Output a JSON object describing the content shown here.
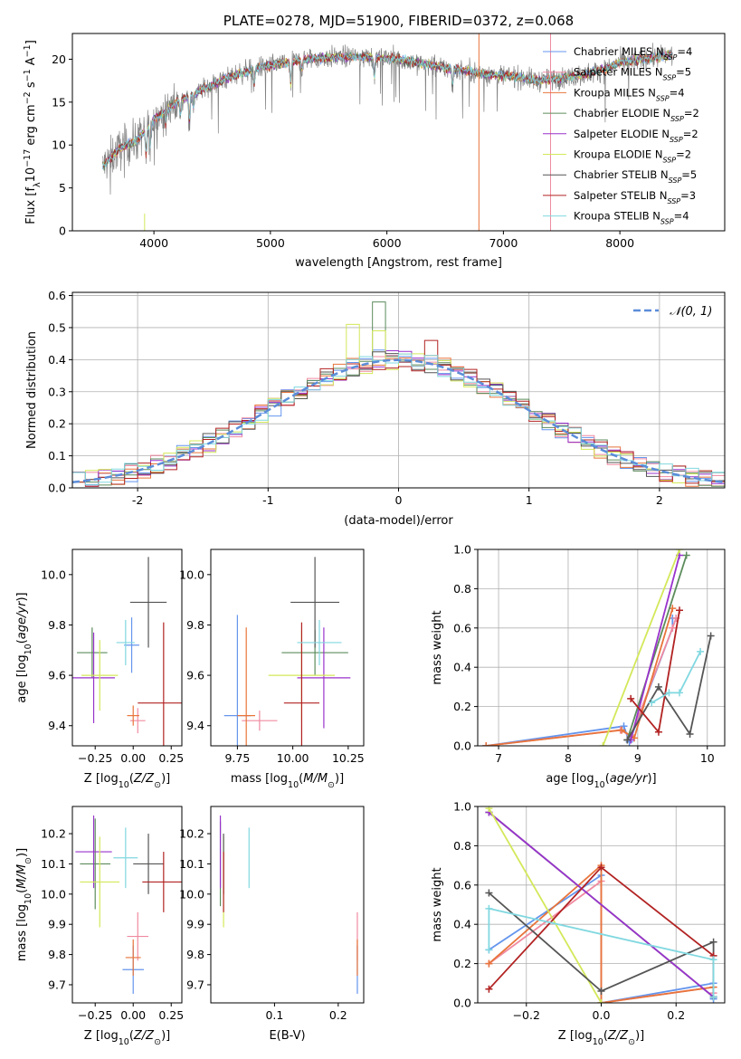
{
  "figure": {
    "title": "PLATE=0278, MJD=51900, FIBERID=0372, z=0.068"
  },
  "colors": {
    "Chabrier MILES": "#6495ed",
    "Salpeter MILES": "#f08aa0",
    "Kroupa MILES": "#e8743b",
    "Chabrier ELODIE": "#5c8c5c",
    "Salpeter ELODIE": "#9932cc",
    "Kroupa ELODIE": "#d4e85a",
    "Chabrier STELIB": "#555555",
    "Salpeter STELIB": "#b22222",
    "Kroupa STELIB": "#80d8e0",
    "data": "#808080",
    "normal": "#5b8dd9"
  },
  "chart_data": [
    {
      "id": "spectrum",
      "type": "line",
      "title": "PLATE=0278, MJD=51900, FIBERID=0372, z=0.068",
      "xlabel": "wavelength [Angstrom, rest frame]",
      "ylabel": "Flux [f",
      "ylabel_parts": [
        "Flux [f",
        "λ",
        "10",
        "−17",
        " erg cm",
        "−2",
        " s",
        "−1",
        " A",
        "−1",
        "]"
      ],
      "xlim": [
        3300,
        8900
      ],
      "ylim": [
        0,
        23
      ],
      "xticks": [
        4000,
        5000,
        6000,
        7000,
        8000
      ],
      "yticks": [
        0,
        5,
        10,
        15,
        20
      ],
      "legend_position": "right",
      "legend": [
        {
          "name": "Chabrier MILES",
          "nssp": "4"
        },
        {
          "name": "Salpeter MILES",
          "nssp": "5"
        },
        {
          "name": "Kroupa MILES",
          "nssp": "4"
        },
        {
          "name": "Chabrier ELODIE",
          "nssp": "2"
        },
        {
          "name": "Salpeter ELODIE",
          "nssp": "2"
        },
        {
          "name": "Kroupa ELODIE",
          "nssp": "2"
        },
        {
          "name": "Chabrier STELIB",
          "nssp": "5"
        },
        {
          "name": "Salpeter STELIB",
          "nssp": "3"
        },
        {
          "name": "Kroupa STELIB",
          "nssp": "4"
        }
      ],
      "nssp_label": "N",
      "nssp_sub": "SSP",
      "continuum": [
        [
          3560,
          7.5
        ],
        [
          3700,
          9.5
        ],
        [
          3850,
          10.5
        ],
        [
          3950,
          12
        ],
        [
          4000,
          13
        ],
        [
          4100,
          14
        ],
        [
          4200,
          15
        ],
        [
          4300,
          15.8
        ],
        [
          4500,
          17
        ],
        [
          4700,
          18.2
        ],
        [
          4900,
          19
        ],
        [
          5100,
          19.5
        ],
        [
          5300,
          20
        ],
        [
          5500,
          20.2
        ],
        [
          5700,
          20.3
        ],
        [
          5900,
          20.2
        ],
        [
          6100,
          20
        ],
        [
          6300,
          19.5
        ],
        [
          6500,
          19
        ],
        [
          6700,
          18.6
        ],
        [
          6900,
          18.2
        ],
        [
          7100,
          18
        ],
        [
          7300,
          17.5
        ],
        [
          7500,
          17.8
        ],
        [
          7700,
          18.2
        ],
        [
          7900,
          19
        ],
        [
          8000,
          19.6
        ],
        [
          8200,
          20
        ],
        [
          8450,
          20.5
        ]
      ],
      "absorption_features": [
        [
          3933,
          3.5
        ],
        [
          3968,
          3
        ],
        [
          4101,
          2
        ],
        [
          4227,
          2
        ],
        [
          4304,
          3.5
        ],
        [
          4340,
          2
        ],
        [
          4861,
          2
        ],
        [
          5175,
          3
        ],
        [
          5270,
          1.5
        ],
        [
          5892,
          2.5
        ],
        [
          6563,
          2
        ]
      ],
      "bad_pixels": [
        3920,
        6790,
        7405
      ]
    },
    {
      "id": "residuals",
      "type": "line",
      "xlabel": "(data-model)/error",
      "ylabel": "Normed distribution",
      "xlim": [
        -2.5,
        2.5
      ],
      "ylim": [
        0,
        0.61
      ],
      "xticks": [
        -2,
        -1,
        0,
        1,
        2
      ],
      "yticks": [
        0.0,
        0.1,
        0.2,
        0.3,
        0.4,
        0.5,
        0.6
      ],
      "grid": true,
      "legend_position": "top-right",
      "legend": [
        "𝒩(0, 1)"
      ],
      "bin_width": 0.1,
      "histogram_envelope": "gaussian",
      "series_peaks": {
        "Chabrier MILES": [
          [
            -0.15,
            0.43
          ],
          [
            0.05,
            0.41
          ]
        ],
        "Chabrier ELODIE": [
          [
            -0.15,
            0.58
          ]
        ],
        "Kroupa ELODIE": [
          [
            -0.35,
            0.51
          ],
          [
            -0.15,
            0.49
          ]
        ],
        "Salpeter STELIB": [
          [
            0.25,
            0.46
          ]
        ]
      }
    },
    {
      "id": "age-vs-Z",
      "type": "scatter",
      "xlabel": "Z [log",
      "ylabel": "age  [log",
      "xlim": [
        -0.4,
        0.32
      ],
      "ylim": [
        9.32,
        10.1
      ],
      "xticks": [
        -0.25,
        0.0,
        0.25
      ],
      "xticklabels": [
        "−0.25",
        "0.00",
        "0.25"
      ],
      "yticks": [
        9.4,
        9.6,
        9.8,
        10.0
      ],
      "points": [
        {
          "series": "Chabrier MILES",
          "x": -0.01,
          "xerr": 0.05,
          "y": 9.72,
          "yerr": 0.11
        },
        {
          "series": "Salpeter MILES",
          "x": 0.03,
          "xerr": 0.05,
          "y": 9.42,
          "yerr": 0.05
        },
        {
          "series": "Kroupa MILES",
          "x": 0.0,
          "xerr": 0.04,
          "y": 9.44,
          "yerr": 0.04
        },
        {
          "series": "Chabrier ELODIE",
          "x": -0.27,
          "xerr": 0.1,
          "y": 9.69,
          "yerr": 0.1
        },
        {
          "series": "Salpeter ELODIE",
          "x": -0.26,
          "xerr": 0.14,
          "y": 9.59,
          "yerr": 0.18
        },
        {
          "series": "Kroupa ELODIE",
          "x": -0.22,
          "xerr": 0.12,
          "y": 9.6,
          "yerr": 0.14
        },
        {
          "series": "Chabrier STELIB",
          "x": 0.1,
          "xerr": 0.12,
          "y": 9.89,
          "yerr": 0.18
        },
        {
          "series": "Salpeter STELIB",
          "x": 0.2,
          "xerr": 0.17,
          "y": 9.49,
          "yerr": 0.32
        },
        {
          "series": "Kroupa STELIB",
          "x": -0.05,
          "xerr": 0.06,
          "y": 9.73,
          "yerr": 0.09
        }
      ]
    },
    {
      "id": "age-vs-mass",
      "type": "scatter",
      "xlabel": "mass [log",
      "xlim": [
        9.63,
        10.32
      ],
      "ylim": [
        9.32,
        10.1
      ],
      "xticks": [
        9.75,
        10.0,
        10.25
      ],
      "xticklabels": [
        "9.75",
        "10.00",
        "10.25"
      ],
      "yticks": [
        9.4,
        9.6,
        9.8,
        10.0
      ],
      "points": [
        {
          "series": "Chabrier MILES",
          "x": 9.75,
          "xerr": 0.06,
          "y": 9.44,
          "yerr": 0.4
        },
        {
          "series": "Salpeter MILES",
          "x": 9.85,
          "xerr": 0.08,
          "y": 9.42,
          "yerr": 0.04
        },
        {
          "series": "Kroupa MILES",
          "x": 9.79,
          "xerr": 0.04,
          "y": 9.44,
          "yerr": 0.35
        },
        {
          "series": "Chabrier ELODIE",
          "x": 10.1,
          "xerr": 0.15,
          "y": 9.69,
          "yerr": 0.09
        },
        {
          "series": "Salpeter ELODIE",
          "x": 10.14,
          "xerr": 0.12,
          "y": 9.59,
          "yerr": 0.2
        },
        {
          "series": "Kroupa ELODIE",
          "x": 10.04,
          "xerr": 0.15,
          "y": 9.6,
          "yerr": 0.18
        },
        {
          "series": "Chabrier STELIB",
          "x": 10.1,
          "xerr": 0.11,
          "y": 9.89,
          "yerr": 0.18
        },
        {
          "series": "Salpeter STELIB",
          "x": 10.04,
          "xerr": 0.08,
          "y": 9.49,
          "yerr": 0.32
        },
        {
          "series": "Kroupa STELIB",
          "x": 10.12,
          "xerr": 0.1,
          "y": 9.73,
          "yerr": 0.09
        }
      ]
    },
    {
      "id": "mass-weight-vs-age",
      "type": "line",
      "xlabel": "age  [log",
      "ylabel": "mass weight",
      "xlim": [
        6.7,
        10.25
      ],
      "ylim": [
        0.0,
        1.0
      ],
      "xticks": [
        7,
        8,
        9,
        10
      ],
      "yticks": [
        0.0,
        0.2,
        0.4,
        0.6,
        0.8,
        1.0
      ],
      "grid": true,
      "series": [
        {
          "name": "Chabrier MILES",
          "x": [
            6.82,
            8.8,
            8.88,
            9.5,
            9.5
          ],
          "y": [
            0.0,
            0.1,
            0.02,
            0.6,
            0.65
          ]
        },
        {
          "name": "Salpeter MILES",
          "x": [
            6.82,
            8.75,
            8.9,
            9.5,
            9.55
          ],
          "y": [
            0.0,
            0.08,
            0.05,
            0.6,
            0.65
          ]
        },
        {
          "name": "Kroupa MILES",
          "x": [
            6.82,
            8.77,
            8.95,
            9.5
          ],
          "y": [
            0.0,
            0.08,
            0.04,
            0.7
          ]
        },
        {
          "name": "Chabrier ELODIE",
          "x": [
            8.85,
            9.7
          ],
          "y": [
            0.03,
            0.97
          ]
        },
        {
          "name": "Salpeter ELODIE",
          "x": [
            8.9,
            9.6
          ],
          "y": [
            0.03,
            0.97
          ]
        },
        {
          "name": "Kroupa ELODIE",
          "x": [
            8.5,
            9.6
          ],
          "y": [
            0.0,
            1.0
          ]
        },
        {
          "name": "Chabrier STELIB",
          "x": [
            8.85,
            9.3,
            9.75,
            10.05
          ],
          "y": [
            0.03,
            0.3,
            0.06,
            0.56
          ]
        },
        {
          "name": "Salpeter STELIB",
          "x": [
            8.9,
            9.3,
            9.6
          ],
          "y": [
            0.24,
            0.07,
            0.69
          ]
        },
        {
          "name": "Kroupa STELIB",
          "x": [
            9.2,
            9.45,
            9.6,
            9.9
          ],
          "y": [
            0.22,
            0.27,
            0.27,
            0.48
          ]
        }
      ]
    },
    {
      "id": "mass-vs-Z",
      "type": "scatter",
      "xlabel": "Z [log",
      "ylabel": "mass [log",
      "xlim": [
        -0.4,
        0.32
      ],
      "ylim": [
        9.64,
        10.29
      ],
      "xticks": [
        -0.25,
        0.0,
        0.25
      ],
      "xticklabels": [
        "−0.25",
        "0.00",
        "0.25"
      ],
      "yticks": [
        9.7,
        9.8,
        9.9,
        10.0,
        10.1,
        10.2
      ],
      "points": [
        {
          "series": "Chabrier MILES",
          "x": 0.0,
          "xerr": 0.07,
          "y": 9.75,
          "yerr": 0.08
        },
        {
          "series": "Salpeter MILES",
          "x": 0.03,
          "xerr": 0.07,
          "y": 9.86,
          "yerr": 0.08
        },
        {
          "series": "Kroupa MILES",
          "x": 0.0,
          "xerr": 0.05,
          "y": 9.79,
          "yerr": 0.06
        },
        {
          "series": "Chabrier ELODIE",
          "x": -0.25,
          "xerr": 0.1,
          "y": 10.1,
          "yerr": 0.15
        },
        {
          "series": "Salpeter ELODIE",
          "x": -0.26,
          "xerr": 0.12,
          "y": 10.14,
          "yerr": 0.12
        },
        {
          "series": "Kroupa ELODIE",
          "x": -0.22,
          "xerr": 0.13,
          "y": 10.04,
          "yerr": 0.15
        },
        {
          "series": "Chabrier STELIB",
          "x": 0.1,
          "xerr": 0.1,
          "y": 10.1,
          "yerr": 0.1
        },
        {
          "series": "Salpeter STELIB",
          "x": 0.2,
          "xerr": 0.14,
          "y": 10.04,
          "yerr": 0.1
        },
        {
          "series": "Kroupa STELIB",
          "x": -0.05,
          "xerr": 0.08,
          "y": 10.12,
          "yerr": 0.1
        }
      ]
    },
    {
      "id": "mass-vs-EBV",
      "type": "scatter",
      "xlabel": "E(B-V)",
      "xlim": [
        0.0,
        0.24
      ],
      "ylim": [
        9.64,
        10.29
      ],
      "xticks": [
        0.1,
        0.2
      ],
      "xticklabels": [
        "0.1",
        "0.2"
      ],
      "yticks": [
        9.7,
        9.8,
        9.9,
        10.0,
        10.1,
        10.2
      ],
      "points": [
        {
          "series": "Chabrier MILES",
          "x": 0.23,
          "y": 9.75,
          "yerr": 0.08
        },
        {
          "series": "Salpeter MILES",
          "x": 0.23,
          "y": 9.86,
          "yerr": 0.08
        },
        {
          "series": "Kroupa MILES",
          "x": 0.23,
          "y": 9.79,
          "yerr": 0.06
        },
        {
          "series": "Chabrier ELODIE",
          "x": 0.015,
          "y": 10.1,
          "yerr": 0.14
        },
        {
          "series": "Salpeter ELODIE",
          "x": 0.015,
          "y": 10.14,
          "yerr": 0.12
        },
        {
          "series": "Kroupa ELODIE",
          "x": 0.02,
          "y": 10.04,
          "yerr": 0.15
        },
        {
          "series": "Chabrier STELIB",
          "x": 0.02,
          "y": 10.1,
          "yerr": 0.1
        },
        {
          "series": "Salpeter STELIB",
          "x": 0.02,
          "y": 10.04,
          "yerr": 0.1
        },
        {
          "series": "Kroupa STELIB",
          "x": 0.06,
          "y": 10.12,
          "yerr": 0.1
        }
      ]
    },
    {
      "id": "mass-weight-vs-Z",
      "type": "line",
      "xlabel": "Z [log",
      "ylabel": "mass weight",
      "xlim": [
        -0.33,
        0.33
      ],
      "ylim": [
        0.0,
        1.0
      ],
      "xticks": [
        -0.2,
        0.0,
        0.2
      ],
      "xticklabels": [
        "−0.2",
        "0.0",
        "0.2"
      ],
      "yticks": [
        0.0,
        0.2,
        0.4,
        0.6,
        0.8,
        1.0
      ],
      "grid": true,
      "series": [
        {
          "name": "Chabrier MILES",
          "x": [
            -0.3,
            0.0,
            0.0,
            0.3,
            0.3
          ],
          "y": [
            0.27,
            0.65,
            0.0,
            0.1,
            0.02
          ]
        },
        {
          "name": "Salpeter MILES",
          "x": [
            -0.3,
            0.0,
            0.0,
            0.3,
            0.3
          ],
          "y": [
            0.2,
            0.62,
            0.0,
            0.08,
            0.05
          ]
        },
        {
          "name": "Kroupa MILES",
          "x": [
            -0.3,
            0.0,
            0.0,
            0.3
          ],
          "y": [
            0.2,
            0.7,
            0.0,
            0.08
          ]
        },
        {
          "name": "Chabrier ELODIE",
          "x": [
            -0.3,
            0.3
          ],
          "y": [
            0.97,
            0.03
          ]
        },
        {
          "name": "Salpeter ELODIE",
          "x": [
            -0.3,
            0.3
          ],
          "y": [
            0.97,
            0.03
          ]
        },
        {
          "name": "Kroupa ELODIE",
          "x": [
            -0.3,
            0.0
          ],
          "y": [
            0.99,
            0.0
          ]
        },
        {
          "name": "Chabrier STELIB",
          "x": [
            -0.3,
            0.0,
            0.3,
            0.3
          ],
          "y": [
            0.56,
            0.06,
            0.31,
            0.03
          ]
        },
        {
          "name": "Salpeter STELIB",
          "x": [
            -0.3,
            0.0,
            0.3
          ],
          "y": [
            0.07,
            0.69,
            0.24
          ]
        },
        {
          "name": "Kroupa STELIB",
          "x": [
            -0.3,
            -0.3,
            0.3,
            0.3
          ],
          "y": [
            0.27,
            0.48,
            0.22,
            0.03
          ]
        }
      ]
    }
  ]
}
